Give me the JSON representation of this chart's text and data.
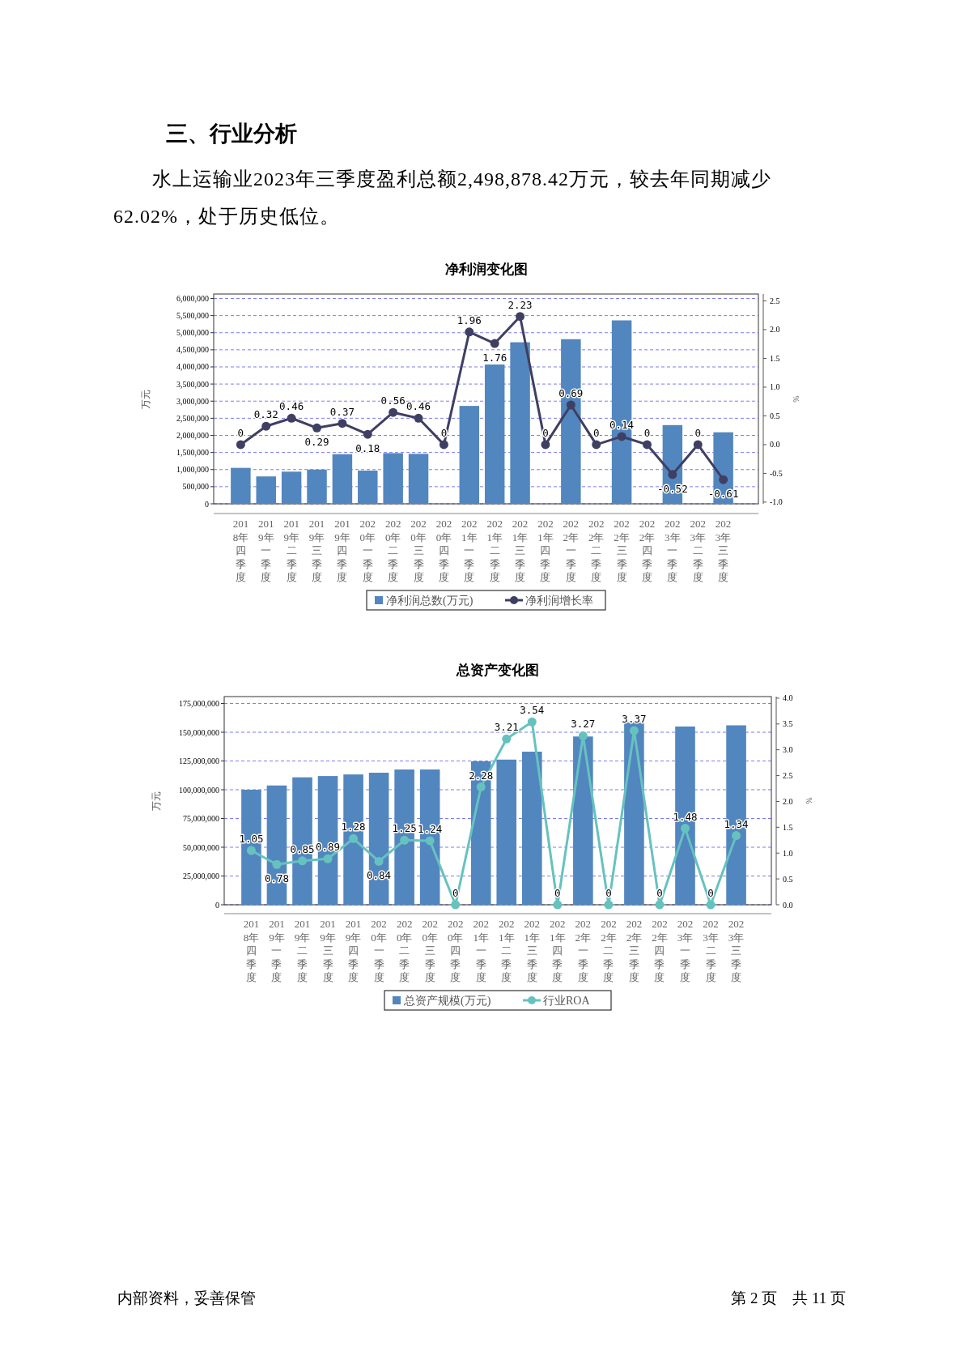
{
  "chart_data": [
    {
      "type": "bar",
      "title": "净利润变化图",
      "annotations": [
        "三、行业分析",
        "水上运输业2023年三季度盈利总额2,498,878.42万元，较去年同期减少62.02%，处于历史低位。"
      ],
      "categories": [
        "2018年四季度",
        "2019年一季度",
        "2019年二季度",
        "2019年三季度",
        "2019年四季度",
        "2020年一季度",
        "2020年二季度",
        "2020年三季度",
        "2020年四季度",
        "2021年一季度",
        "2021年二季度",
        "2021年三季度",
        "2021年四季度",
        "2022年一季度",
        "2022年二季度",
        "2022年三季度",
        "2022年四季度",
        "2023年一季度",
        "2023年二季度",
        "2023年三季度"
      ],
      "ylabel": "万元",
      "y2label": "%",
      "series": [
        {
          "name": "净利润总数(万元)",
          "color": "#5286bf",
          "values": [
            1050000,
            800000,
            940000,
            1000000,
            1450000,
            970000,
            1480000,
            1460000,
            null,
            2860000,
            4070000,
            4720000,
            null,
            4810000,
            null,
            5360000,
            null,
            2300000,
            null,
            2090000
          ]
        },
        {
          "name": "净利润增长率",
          "type": "line",
          "axis": "y2",
          "color": "#3f3f63",
          "values": [
            0,
            0.32,
            0.46,
            0.29,
            0.37,
            0.18,
            0.56,
            0.46,
            0,
            1.96,
            1.76,
            2.23,
            0,
            0.69,
            0,
            0.14,
            0,
            -0.52,
            0,
            -0.61
          ],
          "value_labels": [
            "0",
            "0.32",
            "0.46",
            "0.29",
            "0.37",
            "0.18",
            "0.56",
            "0.46",
            "0",
            "1.96",
            "1.76",
            "2.23",
            "0",
            "0.69",
            "0",
            "0.14",
            "0",
            "-0.52",
            "0",
            "-0.61"
          ]
        }
      ],
      "ylim": [
        0,
        6130000
      ],
      "yticks": [
        0,
        {
          "value": 500000,
          "label": "500,000"
        },
        {
          "value": 1000000,
          "label": "1,000,000"
        },
        {
          "value": 1500000,
          "label": "1,500,000"
        },
        {
          "value": 2000000,
          "label": "2,000,000"
        },
        {
          "value": 2500000,
          "label": "2,500,000"
        },
        {
          "value": 3000000,
          "label": "3,000,000"
        },
        {
          "value": 3500000,
          "label": "3,500,000"
        },
        {
          "value": 4000000,
          "label": "4,000,000"
        },
        {
          "value": 4500000,
          "label": "4,500,000"
        },
        {
          "value": 5000000,
          "label": "5,000,000"
        },
        {
          "value": 5500000,
          "label": "5,500,000"
        },
        {
          "value": 6000000,
          "label": "6,000,000"
        }
      ],
      "y2lim": [
        -1.03,
        2.62
      ],
      "y2ticks": [
        {
          "value": -1,
          "label": "-1.0"
        },
        -0.5,
        {
          "value": 0,
          "label": "0.0"
        },
        0.5,
        {
          "value": 1,
          "label": "1.0"
        },
        1.5,
        {
          "value": 2,
          "label": "2.0"
        },
        2.5
      ],
      "grid": "y",
      "legend": "bottom",
      "marker": "circle"
    },
    {
      "type": "bar",
      "title": "总资产变化图",
      "annotations": [
        "内部资料，妥善保管",
        "第 2 页　共 11 页"
      ],
      "categories": [
        "2018年四季度",
        "2019年一季度",
        "2019年二季度",
        "2019年三季度",
        "2019年四季度",
        "2020年一季度",
        "2020年二季度",
        "2020年三季度",
        "2020年四季度",
        "2021年一季度",
        "2021年二季度",
        "2021年三季度",
        "2021年四季度",
        "2022年一季度",
        "2022年二季度",
        "2022年三季度",
        "2022年四季度",
        "2023年一季度",
        "2023年二季度",
        "2023年三季度"
      ],
      "ylabel": "万元",
      "y2label": "%",
      "series": [
        {
          "name": "总资产规模(万元)",
          "color": "#5286bf",
          "values": [
            100000000,
            103700000,
            110800000,
            111900000,
            113300000,
            114800000,
            117600000,
            117600000,
            null,
            124800000,
            126200000,
            133100000,
            null,
            146300000,
            null,
            158500000,
            null,
            155000000,
            null,
            156000000
          ]
        },
        {
          "name": "行业ROA",
          "type": "line",
          "axis": "y2",
          "color": "#66c2bf",
          "values": [
            1.05,
            0.78,
            0.85,
            0.89,
            1.28,
            0.84,
            1.25,
            1.24,
            0,
            2.28,
            3.21,
            3.54,
            0,
            3.27,
            0,
            3.37,
            0,
            1.48,
            0,
            1.34
          ],
          "value_labels": [
            "1.05",
            "0.78",
            "0.85",
            "0.89",
            "1.28",
            "0.84",
            "1.25",
            "1.24",
            "0",
            "2.28",
            "3.21",
            "3.54",
            "0",
            "3.27",
            "0",
            "3.37",
            "0",
            "1.48",
            "0",
            "1.34"
          ]
        }
      ],
      "ylim": [
        0,
        181000000
      ],
      "yticks": [
        0,
        {
          "value": 25000000,
          "label": "25,000,000"
        },
        {
          "value": 50000000,
          "label": "50,000,000"
        },
        {
          "value": 75000000,
          "label": "75,000,000"
        },
        {
          "value": 100000000,
          "label": "100,000,000"
        },
        {
          "value": 125000000,
          "label": "125,000,000"
        },
        {
          "value": 150000000,
          "label": "150,000,000"
        },
        {
          "value": 175000000,
          "label": "175,000,000"
        }
      ],
      "y2lim": [
        0,
        4.03
      ],
      "y2ticks": [
        {
          "value": 0,
          "label": "0.0"
        },
        0.5,
        {
          "value": 1,
          "label": "1.0"
        },
        1.5,
        {
          "value": 2,
          "label": "2.0"
        },
        2.5,
        {
          "value": 3,
          "label": "3.0"
        },
        3.5,
        {
          "value": 4,
          "label": "4.0"
        }
      ],
      "grid": "y",
      "legend": "bottom",
      "marker": "circle"
    }
  ]
}
